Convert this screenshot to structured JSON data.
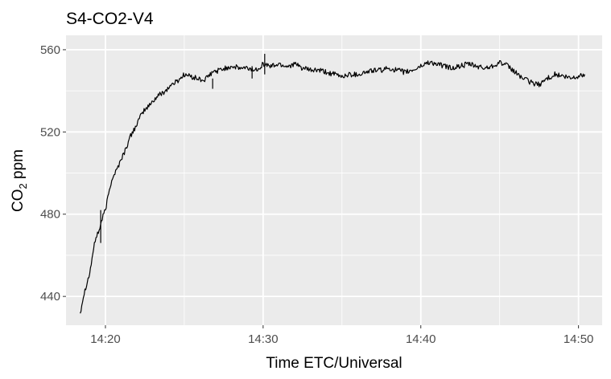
{
  "chart_data": {
    "type": "line",
    "title": "S4-CO2-V4",
    "xlabel": "Time ETC/Universal",
    "ylabel": {
      "main": "CO",
      "sub": "2",
      "unit": " ppm"
    },
    "x_ticks": [
      "14:20",
      "14:30",
      "14:40",
      "14:50"
    ],
    "y_ticks": [
      "440",
      "480",
      "520",
      "560"
    ],
    "xlim": [
      "14:17:30",
      "14:51:30"
    ],
    "ylim": [
      426,
      567
    ],
    "grid": true,
    "panel_color": "#ebebeb",
    "grid_color": "#ffffff",
    "line_color": "#000000",
    "series": [
      {
        "points": [
          [
            "14:18:24",
            432
          ],
          [
            "14:18:36",
            440
          ],
          [
            "14:18:48",
            446
          ],
          [
            "14:19:00",
            451
          ],
          [
            "14:19:12",
            461
          ],
          [
            "14:19:24",
            469
          ],
          [
            "14:19:36",
            472
          ],
          [
            "14:19:48",
            478
          ],
          [
            "14:20:00",
            482
          ],
          [
            "14:20:12",
            490
          ],
          [
            "14:20:24",
            497
          ],
          [
            "14:20:36",
            500
          ],
          [
            "14:20:48",
            503
          ],
          [
            "14:21:00",
            507
          ],
          [
            "14:21:12",
            510
          ],
          [
            "14:21:24",
            514
          ],
          [
            "14:21:36",
            518
          ],
          [
            "14:21:48",
            521
          ],
          [
            "14:22:00",
            524
          ],
          [
            "14:22:12",
            527
          ],
          [
            "14:22:24",
            530
          ],
          [
            "14:22:48",
            533
          ],
          [
            "14:23:00",
            535
          ],
          [
            "14:23:24",
            538
          ],
          [
            "14:23:48",
            540
          ],
          [
            "14:24:12",
            543
          ],
          [
            "14:24:36",
            545
          ],
          [
            "14:25:00",
            548
          ],
          [
            "14:25:24",
            547
          ],
          [
            "14:25:48",
            546
          ],
          [
            "14:26:12",
            545
          ],
          [
            "14:26:24",
            546
          ],
          [
            "14:26:48",
            549
          ],
          [
            "14:27:12",
            550
          ],
          [
            "14:27:36",
            551
          ],
          [
            "14:28:00",
            552
          ],
          [
            "14:28:30",
            551
          ],
          [
            "14:29:00",
            551
          ],
          [
            "14:29:30",
            550
          ],
          [
            "14:30:00",
            553
          ],
          [
            "14:30:30",
            552
          ],
          [
            "14:31:00",
            553
          ],
          [
            "14:31:30",
            552
          ],
          [
            "14:32:00",
            553
          ],
          [
            "14:32:30",
            551
          ],
          [
            "14:33:00",
            550
          ],
          [
            "14:33:30",
            550
          ],
          [
            "14:34:00",
            549
          ],
          [
            "14:34:30",
            548
          ],
          [
            "14:35:00",
            547
          ],
          [
            "14:35:30",
            548
          ],
          [
            "14:36:00",
            548
          ],
          [
            "14:36:30",
            549
          ],
          [
            "14:37:00",
            550
          ],
          [
            "14:37:30",
            550
          ],
          [
            "14:38:00",
            551
          ],
          [
            "14:38:30",
            550
          ],
          [
            "14:39:00",
            549
          ],
          [
            "14:39:30",
            550
          ],
          [
            "14:40:00",
            552
          ],
          [
            "14:40:30",
            554
          ],
          [
            "14:41:00",
            553
          ],
          [
            "14:41:30",
            552
          ],
          [
            "14:42:00",
            551
          ],
          [
            "14:42:30",
            552
          ],
          [
            "14:43:00",
            553
          ],
          [
            "14:43:30",
            552
          ],
          [
            "14:44:00",
            551
          ],
          [
            "14:44:30",
            552
          ],
          [
            "14:45:00",
            554
          ],
          [
            "14:45:30",
            552
          ],
          [
            "14:46:00",
            549
          ],
          [
            "14:46:30",
            546
          ],
          [
            "14:47:00",
            544
          ],
          [
            "14:47:30",
            543
          ],
          [
            "14:48:00",
            546
          ],
          [
            "14:48:30",
            548
          ],
          [
            "14:49:00",
            547
          ],
          [
            "14:49:30",
            546
          ],
          [
            "14:50:00",
            547
          ],
          [
            "14:50:24",
            548
          ]
        ],
        "spikes": [
          {
            "at": "14:19:42",
            "low": 466,
            "high": 482
          },
          {
            "at": "14:26:48",
            "low": 541,
            "high": 546
          },
          {
            "at": "14:30:06",
            "low": 548,
            "high": 558
          },
          {
            "at": "14:29:18",
            "low": 546,
            "high": 552
          }
        ]
      }
    ]
  }
}
